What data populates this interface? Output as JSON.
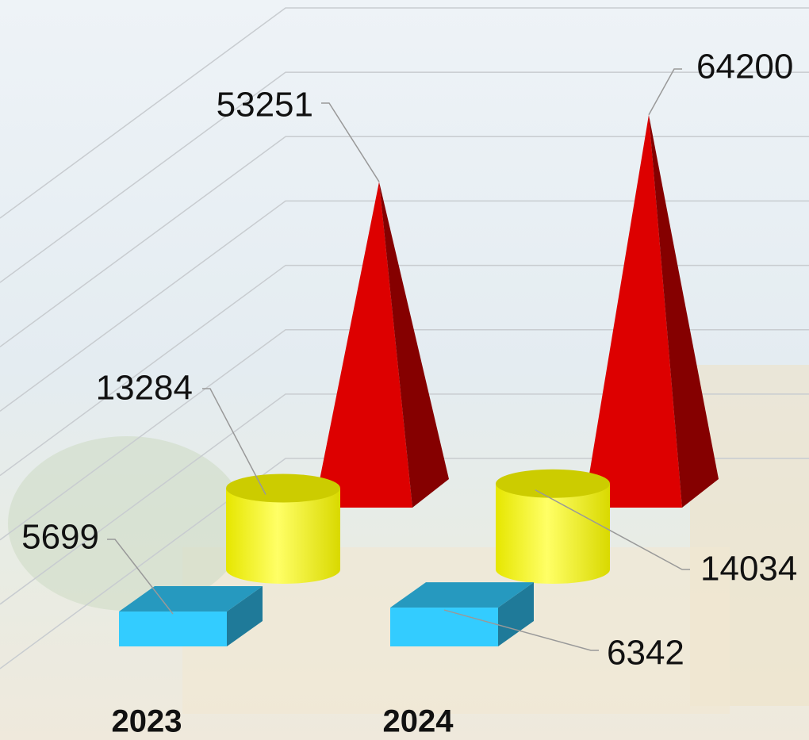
{
  "chart_data": {
    "type": "bar3d",
    "categories": [
      "2023",
      "2024"
    ],
    "series": [
      {
        "shape": "box",
        "color": "#33ccff",
        "values": [
          5699,
          6342
        ]
      },
      {
        "shape": "cylinder",
        "color": "#ffff33",
        "values": [
          13284,
          14034
        ]
      },
      {
        "shape": "pyramid",
        "color": "#dd0000",
        "values": [
          53251,
          64200
        ]
      }
    ],
    "ylim": [
      0,
      70000
    ],
    "yticks": [
      0,
      10000,
      20000,
      30000,
      40000,
      50000,
      60000,
      70000
    ],
    "grid": true
  }
}
